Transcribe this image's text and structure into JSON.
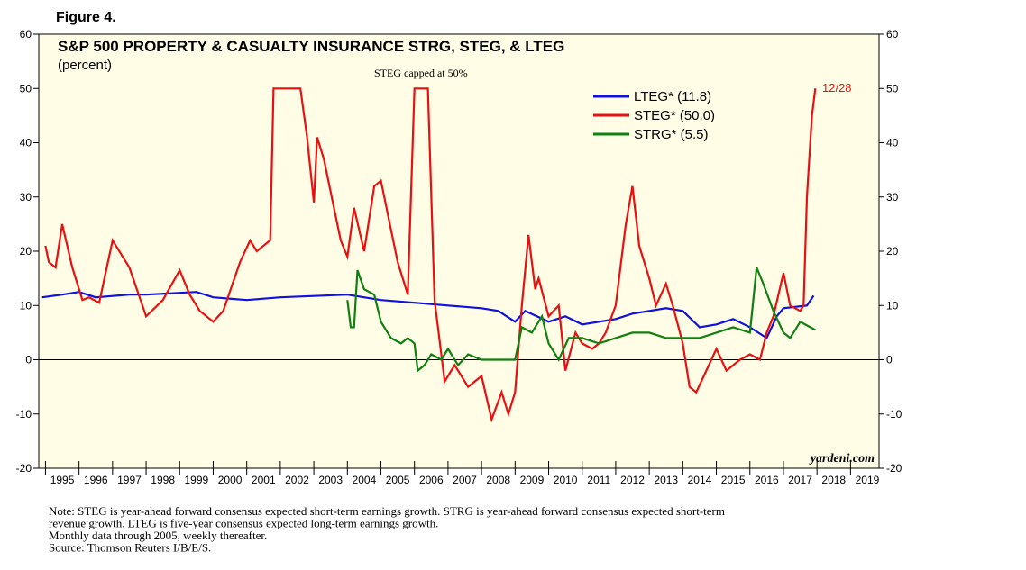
{
  "figure_label": "Figure 4.",
  "chart_data": {
    "type": "line",
    "title": "S&P 500 PROPERTY & CASUALTY INSURANCE STRG, STEG, & LTEG",
    "subtitle": "(percent)",
    "annotations": [
      "STEG capped at 50%",
      "12/28",
      "yardeni.com"
    ],
    "xlim": [
      1994.8,
      2019.85
    ],
    "xticks": [
      1995,
      1996,
      1997,
      1998,
      1999,
      2000,
      2001,
      2002,
      2003,
      2004,
      2005,
      2006,
      2007,
      2008,
      2009,
      2010,
      2011,
      2012,
      2013,
      2014,
      2015,
      2016,
      2017,
      2018,
      2019
    ],
    "ylim": [
      -20,
      60
    ],
    "yticks": [
      -20,
      -10,
      0,
      10,
      20,
      30,
      40,
      50,
      60
    ],
    "legend": "upper right",
    "series": [
      {
        "name": "LTEG* (11.8)",
        "color": "#1010e0",
        "x": [
          1994.9,
          1995.5,
          1996.0,
          1996.5,
          1997.5,
          1998.0,
          1999.5,
          2000.0,
          2001.0,
          2002.0,
          2004.0,
          2005.0,
          2006.0,
          2007.0,
          2008.0,
          2008.5,
          2009.0,
          2009.3,
          2010.0,
          2010.5,
          2011.0,
          2012.0,
          2012.5,
          2013.0,
          2013.5,
          2014.0,
          2014.5,
          2015.0,
          2015.5,
          2016.0,
          2016.5,
          2016.8,
          2017.0,
          2017.7,
          2017.9
        ],
        "values": [
          11.5,
          12,
          12.5,
          11.5,
          12,
          12,
          12.5,
          11.5,
          11,
          11.5,
          12,
          11,
          10.5,
          10,
          9.5,
          9,
          7,
          9,
          7,
          8,
          6.5,
          7.5,
          8.5,
          9,
          9.5,
          9,
          6,
          6.5,
          7.5,
          6,
          4,
          8,
          9.5,
          10,
          11.8
        ]
      },
      {
        "name": "STEG* (50.0)",
        "color": "#e81010",
        "x": [
          1995.0,
          1995.1,
          1995.3,
          1995.5,
          1995.8,
          1996.1,
          1996.3,
          1996.6,
          1997.0,
          1997.5,
          1998.0,
          1998.5,
          1999.0,
          1999.3,
          1999.6,
          2000.0,
          2000.3,
          2000.8,
          2001.1,
          2001.3,
          2001.7,
          2001.8,
          2002.6,
          2002.8,
          2003.0,
          2003.1,
          2003.3,
          2003.8,
          2004.0,
          2004.2,
          2004.5,
          2004.8,
          2005.0,
          2005.5,
          2005.8,
          2006.0,
          2006.4,
          2006.6,
          2006.9,
          2007.2,
          2007.6,
          2008.0,
          2008.3,
          2008.6,
          2008.8,
          2009.0,
          2009.2,
          2009.4,
          2009.6,
          2009.7,
          2010.0,
          2010.3,
          2010.5,
          2010.8,
          2011.0,
          2011.3,
          2011.5,
          2011.7,
          2012.0,
          2012.3,
          2012.5,
          2012.7,
          2013.0,
          2013.2,
          2013.5,
          2013.7,
          2014.0,
          2014.2,
          2014.4,
          2014.7,
          2015.0,
          2015.3,
          2015.7,
          2016.0,
          2016.3,
          2016.5,
          2016.7,
          2017.0,
          2017.2,
          2017.5,
          2017.6,
          2017.7,
          2017.8,
          2017.85,
          2017.95
        ],
        "values": [
          21,
          18,
          17,
          25,
          17,
          11,
          11.5,
          10.5,
          22,
          17,
          8,
          11,
          16.5,
          12,
          9,
          7,
          9,
          18,
          22,
          20,
          22,
          50,
          50,
          41,
          29,
          41,
          37,
          22,
          19,
          28,
          20,
          32,
          33,
          18,
          12,
          50,
          50,
          11,
          -4,
          -1,
          -5,
          -3,
          -11,
          -6,
          -10,
          -6,
          10,
          23,
          13,
          15,
          8,
          10,
          -2,
          5,
          3,
          2,
          3,
          5,
          10,
          25,
          32,
          21,
          15,
          10,
          14,
          10,
          3,
          -5,
          -6,
          -2,
          2,
          -2,
          0,
          1,
          0,
          5,
          8,
          16,
          10,
          9,
          10,
          30,
          40,
          45,
          50
        ]
      },
      {
        "name": "STRG* (5.5)",
        "color": "#108010",
        "x": [
          2004.0,
          2004.1,
          2004.2,
          2004.3,
          2004.5,
          2004.8,
          2005.0,
          2005.3,
          2005.6,
          2005.8,
          2006.0,
          2006.1,
          2006.3,
          2006.5,
          2006.8,
          2007.0,
          2007.3,
          2007.6,
          2008.0,
          2008.5,
          2009.0,
          2009.2,
          2009.5,
          2009.8,
          2010.0,
          2010.3,
          2010.6,
          2011.0,
          2011.5,
          2012.0,
          2012.5,
          2013.0,
          2013.5,
          2014.0,
          2014.5,
          2015.0,
          2015.5,
          2016.0,
          2016.2,
          2016.4,
          2016.7,
          2017.0,
          2017.2,
          2017.5,
          2017.8,
          2017.95
        ],
        "values": [
          11,
          6,
          6,
          16.5,
          13,
          12,
          7,
          4,
          3,
          4,
          3,
          -2,
          -1,
          1,
          0,
          2,
          -1,
          1,
          0,
          0,
          0,
          6,
          5,
          8,
          3,
          0,
          4,
          4,
          3,
          4,
          5,
          5,
          4,
          4,
          4,
          5,
          6,
          5,
          17,
          14,
          9,
          5,
          4,
          7,
          6,
          5.5
        ]
      }
    ]
  },
  "notes": [
    "Note: STEG is year-ahead forward consensus expected short-term earnings growth. STRG is year-ahead forward consensus expected short-term",
    "revenue growth. LTEG is five-year consensus expected long-term earnings growth.",
    "Monthly data through 2005, weekly thereafter.",
    "Source: Thomson Reuters I/B/E/S."
  ]
}
